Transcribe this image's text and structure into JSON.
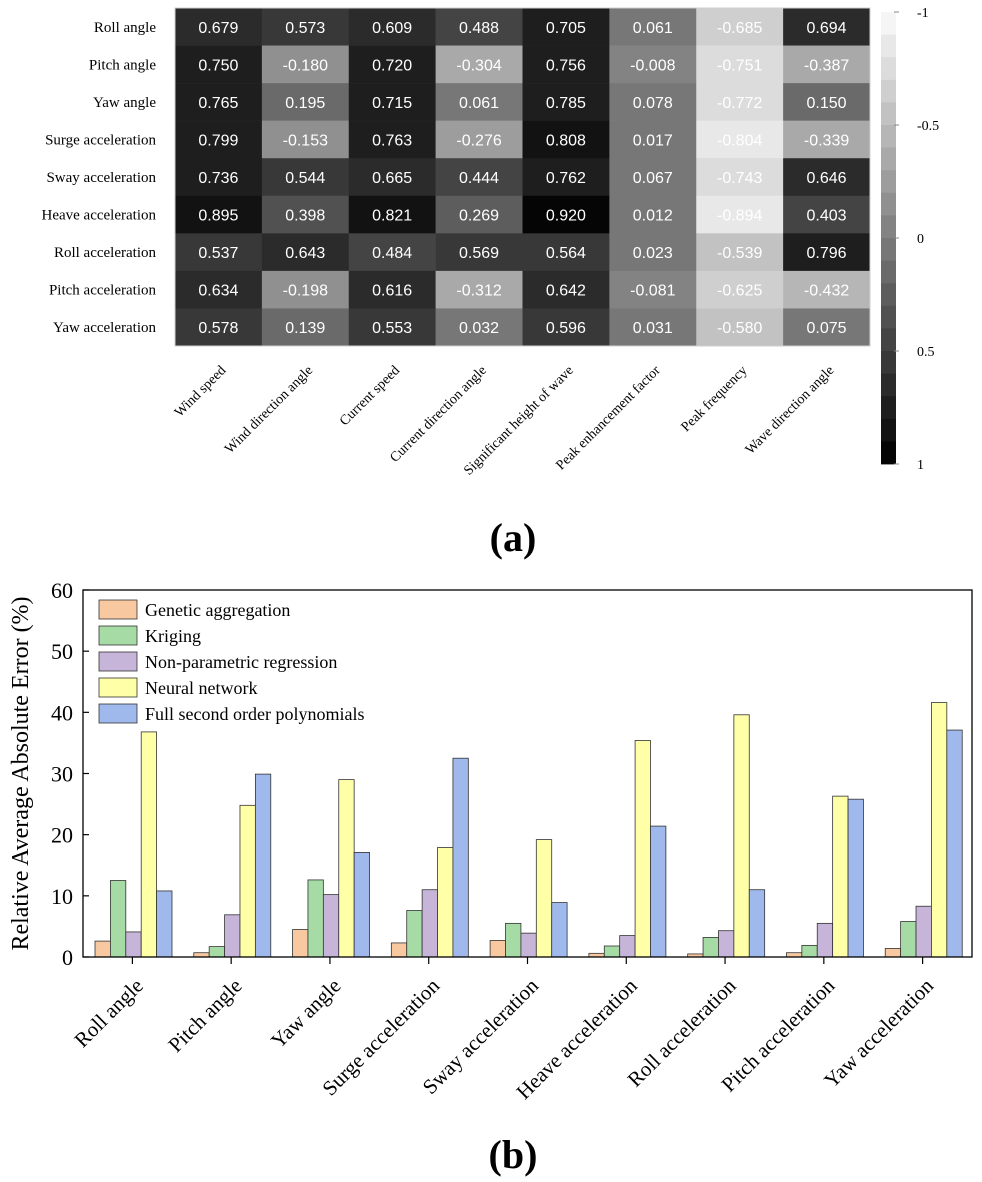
{
  "panel_labels": {
    "a": "(a)",
    "b": "(b)"
  },
  "chart_data": [
    {
      "type": "heatmap",
      "rows": [
        "Roll angle",
        "Pitch angle",
        "Yaw angle",
        "Surge acceleration",
        "Sway acceleration",
        "Heave acceleration",
        "Roll acceleration",
        "Pitch acceleration",
        "Yaw acceleration"
      ],
      "columns": [
        "Wind speed",
        "Wind direction angle",
        "Current speed",
        "Current direction angle",
        "Significant height of wave",
        "Peak enhancement factor",
        "Peak frequency",
        "Wave direction angle"
      ],
      "values": [
        [
          0.679,
          0.573,
          0.609,
          0.488,
          0.705,
          0.061,
          -0.685,
          0.694
        ],
        [
          0.75,
          -0.18,
          0.72,
          -0.304,
          0.756,
          -0.008,
          -0.751,
          -0.387
        ],
        [
          0.765,
          0.195,
          0.715,
          0.061,
          0.785,
          0.078,
          -0.772,
          0.15
        ],
        [
          0.799,
          -0.153,
          0.763,
          -0.276,
          0.808,
          0.017,
          -0.804,
          -0.339
        ],
        [
          0.736,
          0.544,
          0.665,
          0.444,
          0.762,
          0.067,
          -0.743,
          0.646
        ],
        [
          0.895,
          0.398,
          0.821,
          0.269,
          0.92,
          0.012,
          -0.894,
          0.403
        ],
        [
          0.537,
          0.643,
          0.484,
          0.569,
          0.564,
          0.023,
          -0.539,
          0.796
        ],
        [
          0.634,
          -0.198,
          0.616,
          -0.312,
          0.642,
          -0.081,
          -0.625,
          -0.432
        ],
        [
          0.578,
          0.139,
          0.553,
          0.032,
          0.596,
          0.031,
          -0.58,
          0.075
        ]
      ],
      "labels": [
        [
          "0.679",
          "0.573",
          "0.609",
          "0.488",
          "0.705",
          "0.061",
          "-0.685",
          "0.694"
        ],
        [
          "0.750",
          "-0.180",
          "0.720",
          "-0.304",
          "0.756",
          "-0.008",
          "-0.751",
          "-0.387"
        ],
        [
          "0.765",
          "0.195",
          "0.715",
          "0.061",
          "0.785",
          "0.078",
          "-0.772",
          "0.150"
        ],
        [
          "0.799",
          "-0.153",
          "0.763",
          "-0.276",
          "0.808",
          "0.017",
          "-0.804",
          "-0.339"
        ],
        [
          "0.736",
          "0.544",
          "0.665",
          "0.444",
          "0.762",
          "0.067",
          "-0.743",
          "0.646"
        ],
        [
          "0.895",
          "0.398",
          "0.821",
          "0.269",
          "0.920",
          "0.012",
          "-0.894",
          "0.403"
        ],
        [
          "0.537",
          "0.643",
          "0.484",
          "0.569",
          "0.564",
          "0.023",
          "-0.539",
          "0.796"
        ],
        [
          "0.634",
          "-0.198",
          "0.616",
          "-0.312",
          "0.642",
          "-0.081",
          "-0.625",
          "-0.432"
        ],
        [
          "0.578",
          "0.139",
          "0.553",
          "0.032",
          "0.596",
          "0.031",
          "-0.580",
          "0.075"
        ]
      ],
      "colorbar": {
        "range": [
          -1,
          1
        ],
        "ticks": [
          -1,
          -0.5,
          0,
          0.5,
          1
        ],
        "tick_labels": [
          "-1",
          "-0.5",
          "0",
          "0.5",
          "1"
        ],
        "steps": 20,
        "low_color": "#ffffff",
        "high_color": "#000000"
      }
    },
    {
      "type": "bar",
      "categories": [
        "Roll angle",
        "Pitch angle",
        "Yaw angle",
        "Surge acceleration",
        "Sway acceleration",
        "Heave acceleration",
        "Roll acceleration",
        "Pitch acceleration",
        "Yaw acceleration"
      ],
      "series": [
        {
          "name": "Genetic aggregation",
          "color": "#f8c8a0",
          "values": [
            2.6,
            0.7,
            4.5,
            2.3,
            2.7,
            0.6,
            0.5,
            0.7,
            1.4
          ]
        },
        {
          "name": "Kriging",
          "color": "#a6dba6",
          "values": [
            12.5,
            1.7,
            12.6,
            7.6,
            5.5,
            1.8,
            3.2,
            1.9,
            5.8
          ]
        },
        {
          "name": "Non-parametric regression",
          "color": "#c6b4d9",
          "values": [
            4.1,
            6.9,
            10.2,
            11.0,
            3.9,
            3.5,
            4.3,
            5.5,
            8.3
          ]
        },
        {
          "name": "Neural network",
          "color": "#ffffa8",
          "values": [
            36.8,
            24.8,
            29.0,
            17.9,
            19.2,
            35.4,
            39.6,
            26.3,
            41.6
          ]
        },
        {
          "name": "Full second order polynomials",
          "color": "#9fb9ec",
          "values": [
            10.8,
            29.9,
            17.1,
            32.5,
            8.9,
            21.4,
            11.0,
            25.8,
            37.1
          ]
        }
      ],
      "title": "",
      "xlabel": "",
      "ylabel": "Relative Average Absolute Error (%)",
      "ylim": [
        0,
        60
      ],
      "yticks": [
        0,
        10,
        20,
        30,
        40,
        50,
        60
      ],
      "legend_position": "top-left"
    }
  ]
}
